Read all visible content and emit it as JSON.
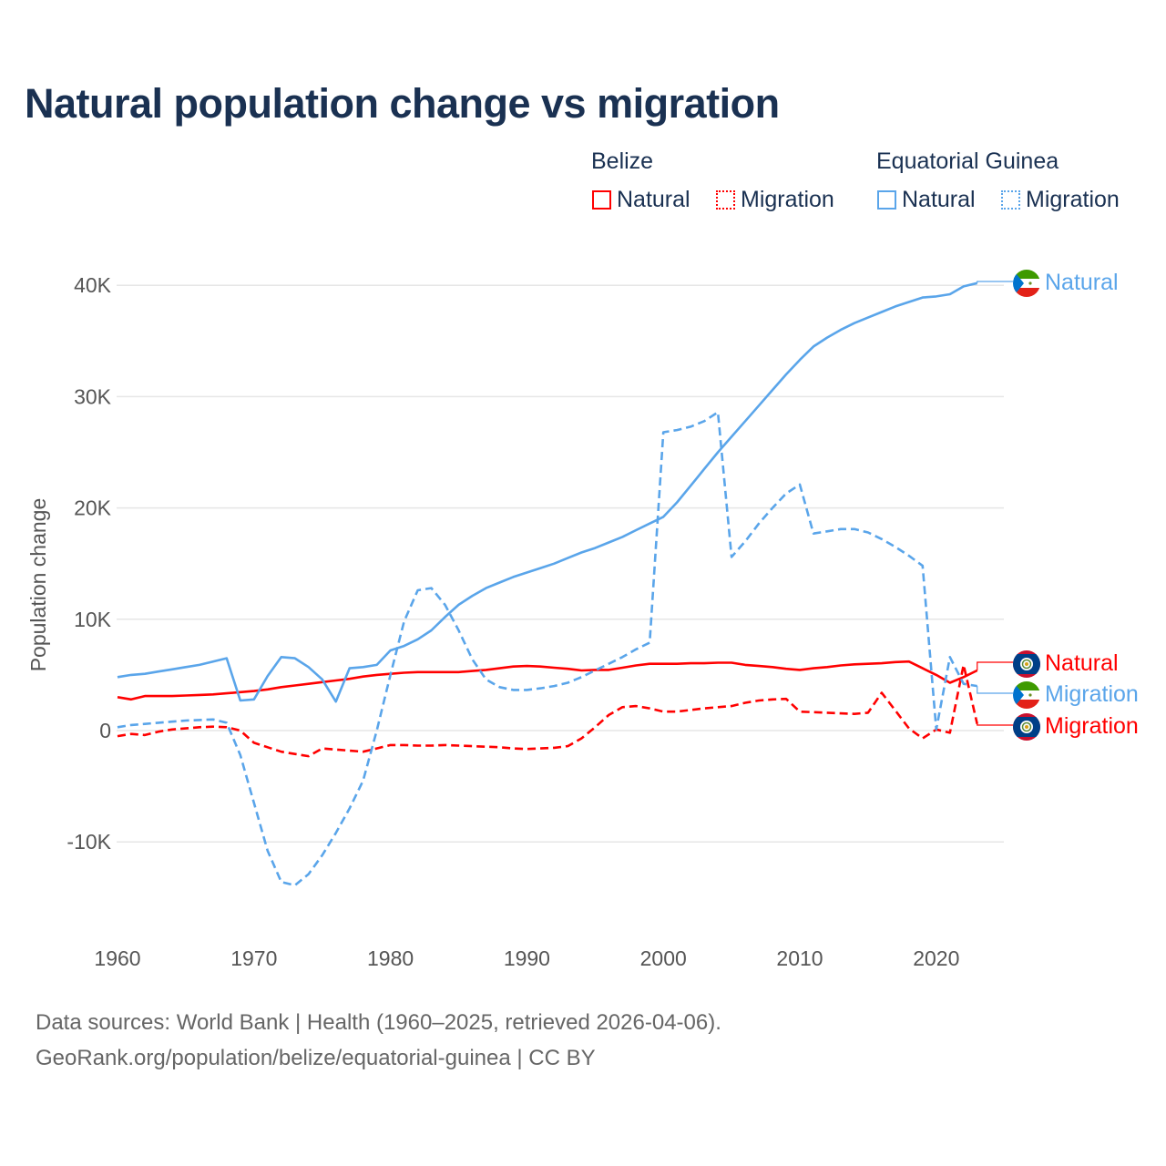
{
  "title": "Natural population change vs migration",
  "legend": {
    "groups": [
      {
        "name": "Belize",
        "color": "#ff0000",
        "items": [
          "Natural",
          "Migration"
        ]
      },
      {
        "name": "Equatorial Guinea",
        "color": "#5aa5ea",
        "items": [
          "Natural",
          "Migration"
        ]
      }
    ]
  },
  "footer": {
    "line1": "Data sources: World Bank | Health (1960–2025, retrieved 2026-04-06).",
    "line2": "GeoRank.org/population/belize/equatorial-guinea | CC BY"
  },
  "chart_data": {
    "type": "line",
    "title": "Natural population change vs migration",
    "xlabel": "",
    "ylabel": "Population change",
    "xlim": [
      1960,
      2023
    ],
    "ylim": [
      -16000,
      42000
    ],
    "x_ticks": [
      "1960",
      "1970",
      "1980",
      "1990",
      "2000",
      "2010",
      "2020"
    ],
    "y_ticks": [
      {
        "v": 40000,
        "label": "40K"
      },
      {
        "v": 30000,
        "label": "30K"
      },
      {
        "v": 20000,
        "label": "20K"
      },
      {
        "v": 10000,
        "label": "10K"
      },
      {
        "v": 0,
        "label": "0"
      },
      {
        "v": -10000,
        "label": "-10K"
      }
    ],
    "x_start": 1960,
    "series": [
      {
        "name": "Belize Natural",
        "country": "Belize",
        "kind": "Natural",
        "color": "#ff0000",
        "dashed": false,
        "flag": "belize-flag",
        "values": [
          3000,
          2800,
          3100,
          3100,
          3100,
          3150,
          3200,
          3250,
          3350,
          3450,
          3550,
          3700,
          3900,
          4050,
          4200,
          4350,
          4500,
          4650,
          4850,
          5000,
          5100,
          5200,
          5250,
          5250,
          5250,
          5250,
          5350,
          5450,
          5600,
          5750,
          5800,
          5750,
          5650,
          5550,
          5400,
          5450,
          5450,
          5650,
          5850,
          6000,
          6000,
          6000,
          6050,
          6050,
          6100,
          6100,
          5900,
          5800,
          5700,
          5550,
          5450,
          5600,
          5700,
          5850,
          5950,
          6000,
          6050,
          6150,
          6200,
          5600,
          5000,
          4300,
          4800,
          5400
        ]
      },
      {
        "name": "Belize Migration",
        "country": "Belize",
        "kind": "Migration",
        "color": "#ff0000",
        "dashed": true,
        "flag": "belize-flag",
        "values": [
          -500,
          -300,
          -400,
          -100,
          100,
          200,
          300,
          350,
          300,
          0,
          -1100,
          -1500,
          -1900,
          -2100,
          -2300,
          -1600,
          -1700,
          -1800,
          -1900,
          -1600,
          -1300,
          -1300,
          -1350,
          -1350,
          -1300,
          -1350,
          -1400,
          -1450,
          -1500,
          -1600,
          -1650,
          -1600,
          -1550,
          -1400,
          -700,
          300,
          1400,
          2100,
          2200,
          2000,
          1700,
          1700,
          1850,
          2000,
          2100,
          2200,
          2500,
          2700,
          2800,
          2850,
          1700,
          1650,
          1600,
          1550,
          1500,
          1600,
          3400,
          1800,
          200,
          -700,
          100,
          -200,
          5900,
          600
        ]
      },
      {
        "name": "Equatorial Guinea Natural",
        "country": "Equatorial Guinea",
        "kind": "Natural",
        "color": "#5aa5ea",
        "dashed": false,
        "flag": "eq-guinea-flag",
        "values": [
          4800,
          5000,
          5100,
          5300,
          5500,
          5700,
          5900,
          6200,
          6500,
          2700,
          2800,
          4900,
          6600,
          6500,
          5700,
          4600,
          2600,
          5600,
          5700,
          5900,
          7200,
          7600,
          8200,
          9000,
          10200,
          11300,
          12100,
          12800,
          13300,
          13800,
          14200,
          14600,
          15000,
          15500,
          16000,
          16400,
          16900,
          17400,
          18000,
          18600,
          19200,
          20500,
          22000,
          23500,
          25000,
          26400,
          27800,
          29200,
          30600,
          32000,
          33300,
          34500,
          35300,
          36000,
          36600,
          37100,
          37600,
          38100,
          38500,
          38900,
          39000,
          39200,
          39900,
          40200
        ]
      },
      {
        "name": "Equatorial Guinea Migration",
        "country": "Equatorial Guinea",
        "kind": "Migration",
        "color": "#5aa5ea",
        "dashed": true,
        "flag": "eq-guinea-flag",
        "values": [
          300,
          500,
          600,
          700,
          800,
          900,
          950,
          1000,
          700,
          -2200,
          -6500,
          -10800,
          -13600,
          -13900,
          -12900,
          -11200,
          -9200,
          -7000,
          -4500,
          0,
          5000,
          9800,
          12600,
          12800,
          11300,
          9000,
          6400,
          4600,
          3900,
          3650,
          3650,
          3800,
          4000,
          4300,
          4800,
          5400,
          6000,
          6600,
          7300,
          7900,
          26800,
          27000,
          27300,
          27800,
          28600,
          15600,
          17000,
          18600,
          20000,
          21300,
          22100,
          17700,
          17900,
          18100,
          18100,
          17800,
          17200,
          16500,
          15700,
          14800,
          100,
          6600,
          4200,
          4000
        ]
      }
    ],
    "end_labels": [
      {
        "series": 0,
        "text": "Natural"
      },
      {
        "series": 3,
        "text": "Migration"
      },
      {
        "series": 1,
        "text": "Migration"
      },
      {
        "series": 2,
        "text": "Natural"
      }
    ],
    "grid": true
  }
}
